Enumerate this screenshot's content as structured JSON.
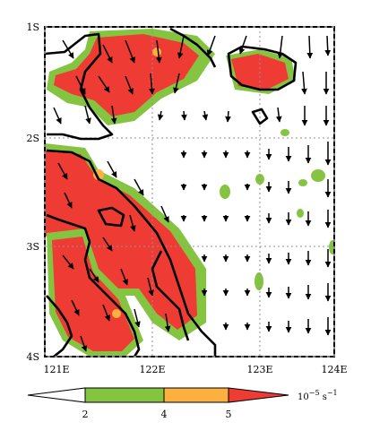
{
  "map": {
    "y_ticks": [
      "1S",
      "2S",
      "3S",
      "4S"
    ],
    "x_ticks": [
      "121E",
      "122E",
      "123E",
      "124E"
    ],
    "colors": {
      "green": "#84c441",
      "orange": "#fbb040",
      "red": "#ee3b33",
      "coast": "#000000",
      "grid": "#9a8aa8",
      "arrow": "#000000"
    }
  },
  "colorbar": {
    "ticks": [
      "2",
      "4",
      "5"
    ],
    "unit_base": "10",
    "unit_exp": "−5",
    "unit_tail": " s",
    "unit_exp2": "−1",
    "colors": [
      "#ffffff",
      "#84c441",
      "#fbb040",
      "#ee3b33"
    ]
  }
}
